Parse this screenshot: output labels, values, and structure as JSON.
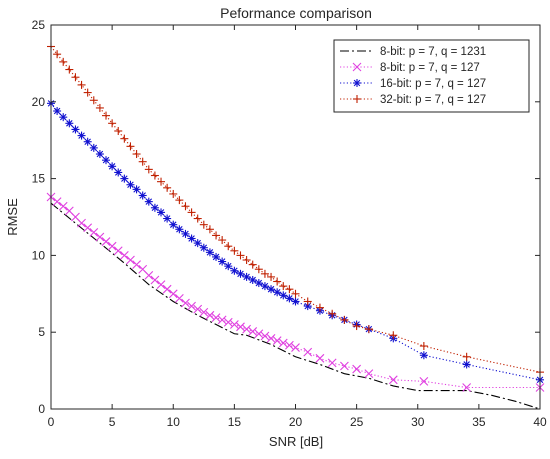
{
  "chart_data": {
    "type": "line",
    "title": "Peformance comparison",
    "xlabel": "SNR [dB]",
    "ylabel": "RMSE",
    "xlim": [
      0,
      40
    ],
    "ylim": [
      0,
      25
    ],
    "xticks": [
      0,
      5,
      10,
      15,
      20,
      25,
      30,
      35,
      40
    ],
    "yticks": [
      0,
      5,
      10,
      15,
      20,
      25
    ],
    "grid": false,
    "legend_position": "top-right",
    "series": [
      {
        "name": "8-bit: p = 7, q = 1231",
        "color": "#000000",
        "line_style": "dash-dot",
        "marker": "none",
        "x": [
          0,
          2,
          4,
          6,
          8,
          10,
          12,
          14,
          15,
          16,
          18,
          20,
          22,
          24,
          26,
          28,
          30,
          32,
          34,
          36,
          38,
          40
        ],
        "y": [
          13.4,
          12.1,
          10.8,
          9.5,
          8.1,
          7.0,
          6.1,
          5.3,
          4.9,
          4.8,
          4.2,
          3.4,
          2.9,
          2.3,
          2.0,
          1.5,
          1.2,
          1.2,
          1.2,
          0.9,
          0.5,
          0.0
        ]
      },
      {
        "name": "8-bit: p = 7, q = 127",
        "color": "#e040e0",
        "line_style": "dotted",
        "marker": "x",
        "x": [
          0,
          0.5,
          1,
          1.5,
          2,
          2.5,
          3,
          3.5,
          4,
          4.5,
          5,
          5.5,
          6,
          6.5,
          7,
          7.5,
          8,
          8.5,
          9,
          9.5,
          10,
          10.5,
          11,
          11.5,
          12,
          12.5,
          13,
          13.5,
          14,
          14.5,
          15,
          15.5,
          16,
          16.5,
          17,
          17.5,
          18,
          18.5,
          19,
          19.5,
          20,
          21,
          22,
          23,
          24,
          25,
          26,
          28,
          30.5,
          34,
          40
        ],
        "y": [
          13.8,
          13.5,
          13.2,
          12.9,
          12.5,
          12.1,
          11.8,
          11.5,
          11.2,
          10.9,
          10.6,
          10.3,
          10.0,
          9.7,
          9.4,
          9.1,
          8.7,
          8.4,
          8.1,
          7.8,
          7.5,
          7.2,
          6.9,
          6.7,
          6.5,
          6.3,
          6.1,
          5.95,
          5.8,
          5.65,
          5.5,
          5.35,
          5.2,
          5.05,
          4.9,
          4.75,
          4.6,
          4.45,
          4.3,
          4.15,
          4.0,
          3.7,
          3.3,
          3.0,
          2.8,
          2.6,
          2.3,
          1.9,
          1.8,
          1.4,
          1.4
        ]
      },
      {
        "name": "16-bit: p = 7, q = 127",
        "color": "#1010d0",
        "line_style": "dotted",
        "marker": "*",
        "x": [
          0,
          0.5,
          1,
          1.5,
          2,
          2.5,
          3,
          3.5,
          4,
          4.5,
          5,
          5.5,
          6,
          6.5,
          7,
          7.5,
          8,
          8.5,
          9,
          9.5,
          10,
          10.5,
          11,
          11.5,
          12,
          12.5,
          13,
          13.5,
          14,
          14.5,
          15,
          15.5,
          16,
          16.5,
          17,
          17.5,
          18,
          18.5,
          19,
          19.5,
          20,
          21,
          22,
          23,
          24,
          25,
          26,
          28,
          30.5,
          34,
          40
        ],
        "y": [
          19.9,
          19.4,
          19.0,
          18.6,
          18.2,
          17.8,
          17.4,
          17.0,
          16.6,
          16.2,
          15.8,
          15.4,
          15.0,
          14.6,
          14.3,
          13.9,
          13.5,
          13.1,
          12.8,
          12.4,
          12.0,
          11.7,
          11.4,
          11.1,
          10.8,
          10.5,
          10.2,
          9.9,
          9.6,
          9.3,
          9.0,
          8.8,
          8.6,
          8.4,
          8.2,
          8.0,
          7.8,
          7.6,
          7.4,
          7.2,
          7.0,
          6.7,
          6.4,
          6.1,
          5.8,
          5.5,
          5.2,
          4.6,
          3.5,
          2.9,
          1.9
        ]
      },
      {
        "name": "32-bit: p = 7, q = 127",
        "color": "#c02000",
        "line_style": "dotted",
        "marker": "+",
        "x": [
          0,
          0.5,
          1,
          1.5,
          2,
          2.5,
          3,
          3.5,
          4,
          4.5,
          5,
          5.5,
          6,
          6.5,
          7,
          7.5,
          8,
          8.5,
          9,
          9.5,
          10,
          10.5,
          11,
          11.5,
          12,
          12.5,
          13,
          13.5,
          14,
          14.5,
          15,
          15.5,
          16,
          16.5,
          17,
          17.5,
          18,
          18.5,
          19,
          19.5,
          20,
          21,
          22,
          23,
          24,
          25,
          26,
          28,
          30.5,
          34,
          40
        ],
        "y": [
          23.6,
          23.1,
          22.6,
          22.1,
          21.6,
          21.1,
          20.6,
          20.1,
          19.6,
          19.1,
          18.6,
          18.1,
          17.6,
          17.1,
          16.6,
          16.1,
          15.6,
          15.2,
          14.8,
          14.4,
          14.0,
          13.6,
          13.2,
          12.8,
          12.4,
          12.0,
          11.7,
          11.3,
          11.0,
          10.6,
          10.3,
          10.0,
          9.7,
          9.4,
          9.1,
          8.8,
          8.6,
          8.3,
          8.0,
          7.8,
          7.5,
          7.0,
          6.6,
          6.2,
          5.8,
          5.4,
          5.2,
          4.8,
          4.1,
          3.4,
          2.4
        ]
      }
    ]
  }
}
